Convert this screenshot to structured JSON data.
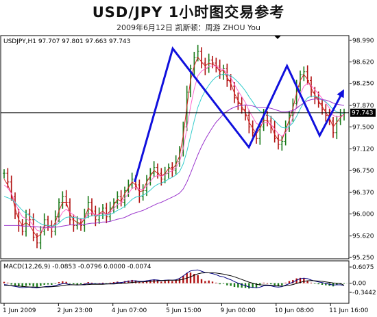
{
  "header": {
    "title": "USD/JPY  1小时图交易参考",
    "subtitle": "2009年6月12日    凯斯顿：周游 ZHOU You"
  },
  "colors": {
    "ohlc_up": "#1a7a1a",
    "ohlc_down": "#b01010",
    "ma_fast": "#d22020",
    "ma_mid": "#ff66cc",
    "ma_slow": "#33cccc",
    "ma_slower": "#9933cc",
    "pattern": "#1010dd",
    "macd_line": "#000080",
    "macd_signal": "#000000",
    "current_price_bg": "#000000"
  },
  "chart_data": [
    {
      "type": "line",
      "panel": "price",
      "info": "USDJPY,H1  97.707 97.801 97.663 97.743",
      "current_price": 97.743,
      "current_price_label": "97.743",
      "ylim": [
        95.25,
        98.99
      ],
      "yticks": [
        95.25,
        95.62,
        96.0,
        96.37,
        96.75,
        97.12,
        97.5,
        97.87,
        98.25,
        98.62,
        98.99
      ],
      "ytick_labels": [
        "95.250",
        "95.620",
        "96.000",
        "96.370",
        "96.750",
        "97.120",
        "97.500",
        "97.870",
        "98.250",
        "98.620",
        "98.990"
      ],
      "xlabels": [
        "1 Jun 2009",
        "2 Jun 23:00",
        "4 Jun 07:00",
        "5 Jun 15:00",
        "9 Jun 00:00",
        "10 Jun 08:00",
        "11 Jun 16:00"
      ],
      "xlabel_pos": [
        0,
        20,
        40,
        60,
        80,
        100,
        120
      ],
      "xlim": [
        0,
        125
      ],
      "close": [
        96.7,
        96.55,
        96.3,
        96.0,
        95.8,
        95.7,
        96.0,
        95.9,
        95.6,
        95.5,
        95.7,
        95.9,
        95.8,
        95.7,
        95.95,
        96.2,
        96.3,
        96.2,
        95.9,
        95.8,
        95.85,
        95.8,
        96.0,
        96.2,
        96.05,
        95.9,
        96.0,
        96.1,
        95.95,
        96.1,
        96.2,
        96.3,
        96.2,
        96.4,
        96.5,
        96.6,
        96.5,
        96.3,
        96.4,
        96.6,
        96.7,
        96.8,
        96.7,
        96.6,
        96.7,
        96.8,
        96.75,
        96.9,
        97.1,
        97.5,
        98.1,
        98.5,
        98.7,
        98.8,
        98.6,
        98.5,
        98.65,
        98.6,
        98.55,
        98.4,
        98.5,
        98.3,
        98.2,
        98.0,
        97.9,
        97.8,
        97.7,
        97.5,
        97.4,
        97.3,
        97.5,
        97.7,
        97.6,
        97.5,
        97.3,
        97.2,
        97.25,
        97.5,
        97.7,
        97.9,
        98.2,
        98.4,
        98.45,
        98.3,
        98.1,
        98.0,
        97.9,
        97.8,
        97.7,
        97.6,
        97.4,
        97.6,
        97.7,
        97.743
      ],
      "pattern_points": [
        [
          48,
          96.55
        ],
        [
          62,
          98.85
        ],
        [
          90,
          97.15
        ],
        [
          104,
          98.55
        ],
        [
          116,
          97.35
        ],
        [
          125,
          98.15
        ]
      ],
      "series": [
        {
          "name": "",
          "color_key": "ma_fast",
          "values": [
            96.6,
            96.5,
            96.35,
            96.1,
            95.9,
            95.8,
            95.85,
            95.8,
            95.7,
            95.6,
            95.65,
            95.8,
            95.8,
            95.75,
            95.85,
            96.05,
            96.2,
            96.2,
            96.0,
            95.9,
            95.85,
            95.82,
            95.92,
            96.1,
            96.05,
            95.95,
            96.0,
            96.05,
            95.98,
            96.05,
            96.15,
            96.25,
            96.22,
            96.35,
            96.45,
            96.55,
            96.5,
            96.38,
            96.4,
            96.55,
            96.65,
            96.75,
            96.7,
            96.65,
            96.7,
            96.78,
            96.77,
            96.85,
            97.0,
            97.35,
            97.85,
            98.3,
            98.55,
            98.7,
            98.62,
            98.55,
            98.6,
            98.58,
            98.55,
            98.45,
            98.48,
            98.35,
            98.25,
            98.08,
            97.95,
            97.85,
            97.75,
            97.58,
            97.48,
            97.38,
            97.47,
            97.62,
            97.6,
            97.52,
            97.37,
            97.27,
            97.27,
            97.45,
            97.62,
            97.82,
            98.08,
            98.3,
            98.4,
            98.32,
            98.17,
            98.05,
            97.95,
            97.85,
            97.75,
            97.65,
            97.5,
            97.58,
            97.66,
            97.72
          ]
        },
        {
          "name": "",
          "color_key": "ma_mid",
          "values": [
            96.5,
            96.45,
            96.35,
            96.2,
            96.05,
            95.95,
            95.92,
            95.88,
            95.8,
            95.72,
            95.7,
            95.75,
            95.77,
            95.76,
            95.8,
            95.92,
            96.03,
            96.08,
            96.03,
            95.98,
            95.93,
            95.89,
            95.91,
            96.0,
            96.02,
            95.98,
            95.99,
            96.02,
            95.99,
            96.02,
            96.09,
            96.16,
            96.19,
            96.27,
            96.35,
            96.44,
            96.46,
            96.42,
            96.42,
            96.48,
            96.56,
            96.64,
            96.66,
            96.65,
            96.67,
            96.72,
            96.74,
            96.8,
            96.9,
            97.12,
            97.48,
            97.85,
            98.15,
            98.38,
            98.46,
            98.5,
            98.54,
            98.55,
            98.55,
            98.5,
            98.49,
            98.42,
            98.35,
            98.23,
            98.12,
            98.02,
            97.92,
            97.78,
            97.67,
            97.56,
            97.53,
            97.57,
            97.58,
            97.55,
            97.46,
            97.38,
            97.34,
            97.4,
            97.51,
            97.66,
            97.86,
            98.06,
            98.2,
            98.25,
            98.21,
            98.14,
            98.07,
            97.99,
            97.91,
            97.82,
            97.7,
            97.67,
            97.68,
            97.7
          ]
        },
        {
          "name": "",
          "color_key": "ma_slow",
          "values": [
            96.3,
            96.28,
            96.25,
            96.2,
            96.13,
            96.06,
            96.01,
            95.97,
            95.92,
            95.87,
            95.83,
            95.81,
            95.8,
            95.79,
            95.8,
            95.84,
            95.9,
            95.94,
            95.95,
            95.94,
            95.93,
            95.92,
            95.92,
            95.95,
            95.97,
            95.97,
            95.97,
            95.98,
            95.98,
            95.99,
            96.02,
            96.06,
            96.09,
            96.13,
            96.19,
            96.25,
            96.29,
            96.3,
            96.32,
            96.36,
            96.41,
            96.47,
            96.51,
            96.53,
            96.56,
            96.6,
            96.63,
            96.67,
            96.73,
            96.86,
            97.08,
            97.34,
            97.6,
            97.84,
            98.0,
            98.12,
            98.22,
            98.3,
            98.36,
            98.39,
            98.41,
            98.4,
            98.38,
            98.33,
            98.27,
            98.2,
            98.12,
            98.02,
            97.93,
            97.83,
            97.77,
            97.74,
            97.71,
            97.67,
            97.61,
            97.54,
            97.49,
            97.48,
            97.51,
            97.57,
            97.68,
            97.81,
            97.92,
            98.0,
            98.03,
            98.03,
            98.01,
            97.97,
            97.93,
            97.87,
            97.8,
            97.76,
            97.74,
            97.73
          ]
        },
        {
          "name": "",
          "color_key": "ma_slower",
          "values": [
            95.8,
            95.8,
            95.8,
            95.8,
            95.8,
            95.79,
            95.79,
            95.79,
            95.78,
            95.78,
            95.77,
            95.77,
            95.77,
            95.77,
            95.77,
            95.78,
            95.79,
            95.8,
            95.81,
            95.81,
            95.81,
            95.82,
            95.82,
            95.83,
            95.84,
            95.84,
            95.85,
            95.86,
            95.86,
            95.87,
            95.89,
            95.91,
            95.92,
            95.94,
            95.97,
            96.0,
            96.02,
            96.04,
            96.06,
            96.09,
            96.12,
            96.15,
            96.18,
            96.2,
            96.23,
            96.26,
            96.29,
            96.32,
            96.36,
            96.43,
            96.55,
            96.7,
            96.86,
            97.02,
            97.16,
            97.28,
            97.39,
            97.49,
            97.58,
            97.65,
            97.72,
            97.77,
            97.81,
            97.84,
            97.86,
            97.87,
            97.88,
            97.87,
            97.86,
            97.84,
            97.83,
            97.83,
            97.83,
            97.82,
            97.8,
            97.78,
            97.76,
            97.76,
            97.77,
            97.78,
            97.82,
            97.87,
            97.91,
            97.95,
            97.97,
            97.98,
            97.98,
            97.97,
            97.96,
            97.94,
            97.91,
            97.89,
            97.88,
            97.87
          ]
        }
      ]
    },
    {
      "type": "bar",
      "panel": "macd",
      "info": "MACD(12,26,9) -0.0853 -0.0796 0.0000 -0.0074",
      "ylim": [
        -0.3442,
        0.6075
      ],
      "yticks": [
        -0.3442,
        0.0,
        0.6075
      ],
      "ytick_labels": [
        "-0.3442",
        "0.00",
        "0.6075"
      ],
      "histogram": [
        0.05,
        0.02,
        -0.05,
        -0.08,
        -0.12,
        -0.14,
        -0.1,
        -0.08,
        -0.12,
        -0.14,
        -0.1,
        -0.06,
        -0.05,
        -0.06,
        -0.02,
        0.04,
        0.07,
        0.05,
        -0.02,
        -0.04,
        -0.05,
        -0.04,
        0.0,
        0.04,
        0.02,
        -0.01,
        0.0,
        0.02,
        -0.01,
        0.02,
        0.04,
        0.06,
        0.04,
        0.08,
        0.1,
        0.12,
        0.1,
        0.05,
        0.06,
        0.1,
        0.12,
        0.14,
        0.1,
        0.06,
        0.08,
        0.1,
        0.08,
        0.12,
        0.18,
        0.28,
        0.38,
        0.4,
        0.35,
        0.3,
        0.15,
        0.08,
        0.1,
        0.06,
        0.02,
        -0.04,
        -0.02,
        -0.08,
        -0.1,
        -0.14,
        -0.16,
        -0.17,
        -0.18,
        -0.2,
        -0.18,
        -0.16,
        -0.08,
        0.02,
        0.0,
        -0.04,
        -0.1,
        -0.12,
        -0.08,
        0.02,
        0.08,
        0.12,
        0.18,
        0.2,
        0.18,
        0.1,
        0.02,
        -0.02,
        -0.04,
        -0.06,
        -0.08,
        -0.1,
        -0.12,
        -0.06,
        -0.04,
        -0.02
      ],
      "macd": [
        -0.05,
        -0.07,
        -0.1,
        -0.12,
        -0.15,
        -0.17,
        -0.16,
        -0.15,
        -0.17,
        -0.18,
        -0.16,
        -0.13,
        -0.12,
        -0.12,
        -0.09,
        -0.05,
        -0.02,
        -0.02,
        -0.05,
        -0.06,
        -0.07,
        -0.06,
        -0.04,
        -0.01,
        -0.02,
        -0.03,
        -0.03,
        -0.02,
        -0.03,
        -0.02,
        0.0,
        0.02,
        0.02,
        0.05,
        0.07,
        0.09,
        0.09,
        0.07,
        0.07,
        0.09,
        0.11,
        0.13,
        0.12,
        0.1,
        0.11,
        0.12,
        0.11,
        0.13,
        0.18,
        0.27,
        0.38,
        0.46,
        0.49,
        0.5,
        0.45,
        0.4,
        0.39,
        0.36,
        0.32,
        0.26,
        0.24,
        0.18,
        0.13,
        0.06,
        0.0,
        -0.05,
        -0.09,
        -0.14,
        -0.16,
        -0.18,
        -0.15,
        -0.1,
        -0.09,
        -0.1,
        -0.13,
        -0.15,
        -0.13,
        -0.07,
        -0.02,
        0.04,
        0.11,
        0.17,
        0.19,
        0.17,
        0.12,
        0.08,
        0.05,
        0.02,
        -0.01,
        -0.04,
        -0.07,
        -0.06,
        -0.06,
        -0.0853
      ],
      "signal": [
        -0.08,
        -0.08,
        -0.09,
        -0.1,
        -0.11,
        -0.12,
        -0.13,
        -0.14,
        -0.14,
        -0.15,
        -0.15,
        -0.14,
        -0.14,
        -0.13,
        -0.12,
        -0.11,
        -0.09,
        -0.07,
        -0.06,
        -0.06,
        -0.06,
        -0.06,
        -0.06,
        -0.05,
        -0.04,
        -0.04,
        -0.04,
        -0.04,
        -0.03,
        -0.03,
        -0.03,
        -0.02,
        -0.01,
        0.0,
        0.01,
        0.03,
        0.04,
        0.05,
        0.05,
        0.06,
        0.07,
        0.08,
        0.09,
        0.1,
        0.1,
        0.11,
        0.11,
        0.11,
        0.12,
        0.15,
        0.19,
        0.24,
        0.3,
        0.35,
        0.38,
        0.39,
        0.39,
        0.39,
        0.38,
        0.36,
        0.34,
        0.31,
        0.28,
        0.24,
        0.19,
        0.14,
        0.09,
        0.04,
        0.0,
        -0.04,
        -0.06,
        -0.07,
        -0.07,
        -0.08,
        -0.09,
        -0.1,
        -0.11,
        -0.1,
        -0.08,
        -0.05,
        -0.01,
        0.03,
        0.07,
        0.09,
        0.1,
        0.09,
        0.08,
        0.07,
        0.05,
        0.03,
        0.01,
        0.0,
        -0.01,
        -0.0796
      ]
    }
  ]
}
